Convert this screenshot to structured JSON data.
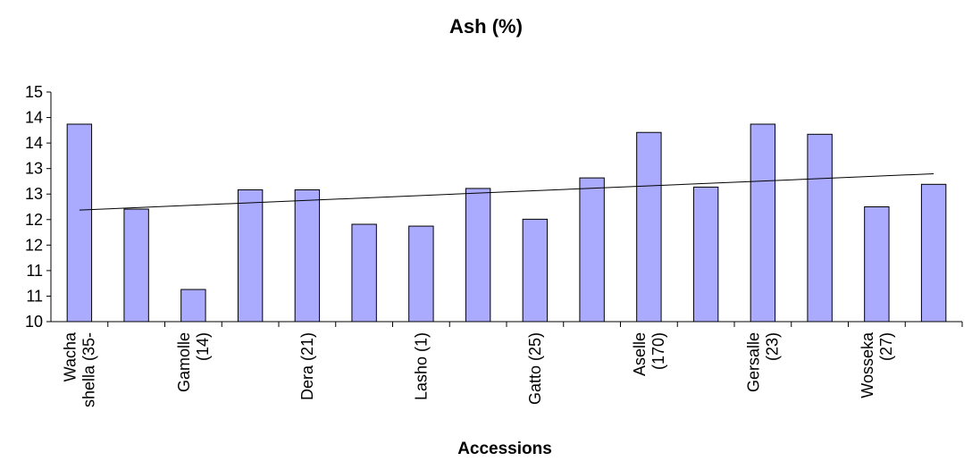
{
  "chart_data": {
    "type": "bar",
    "title": "Ash (%)",
    "xlabel": "Accessions",
    "ylabel": "",
    "ylim": [
      10,
      15
    ],
    "y_tick_labels": [
      "10",
      "11",
      "11",
      "12",
      "12",
      "13",
      "13",
      "14",
      "14",
      "15"
    ],
    "categories": [
      [
        "Wacha",
        "shella (35-"
      ],
      [],
      [
        "Gamolle",
        "(14)"
      ],
      [],
      [
        "Dera (21)"
      ],
      [],
      [
        "Lasho (1)"
      ],
      [],
      [
        "Gatto (25)"
      ],
      [],
      [
        "Aselle",
        "(170)"
      ],
      [],
      [
        "Gersalle",
        "(23)"
      ],
      [],
      [
        "Wosseka",
        "(27)"
      ],
      []
    ],
    "values": [
      14.3,
      12.45,
      10.7,
      12.87,
      12.87,
      12.12,
      12.08,
      12.9,
      12.23,
      13.13,
      14.12,
      12.93,
      14.3,
      14.08,
      12.5,
      12.99
    ],
    "bar_color": "#aaaaff",
    "bar_border": "#000000",
    "trendline": {
      "type": "linear",
      "start": 12.43,
      "end": 13.22,
      "color": "#000000"
    },
    "grid": false,
    "legend": "none"
  }
}
